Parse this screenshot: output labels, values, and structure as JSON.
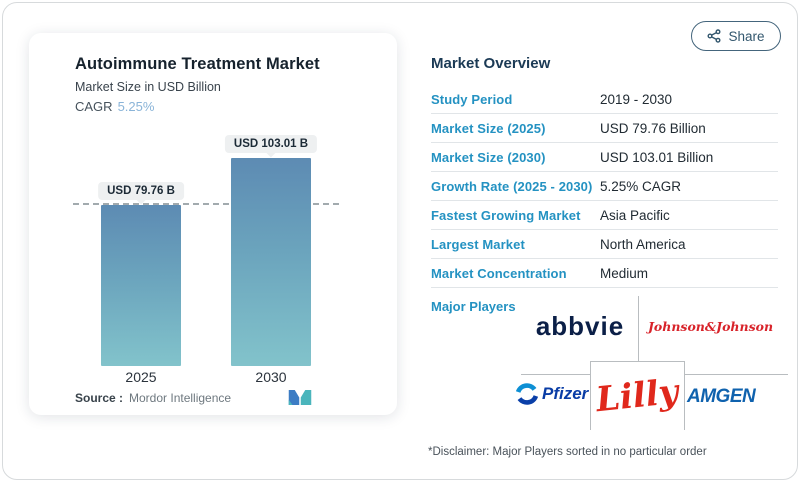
{
  "share": {
    "label": "Share"
  },
  "chart": {
    "title": "Autoimmune Treatment Market",
    "subtitle": "Market Size in USD Billion",
    "cagr_label": "CAGR",
    "cagr_value": "5.25%",
    "source_label": "Source :",
    "source_value": "Mordor Intelligence"
  },
  "chart_data": {
    "type": "bar",
    "title": "Autoimmune Treatment Market",
    "ylabel": "Market Size in USD Billion",
    "categories": [
      "2025",
      "2030"
    ],
    "values": [
      79.76,
      103.01
    ],
    "value_labels": [
      "USD 79.76 B",
      "USD 103.01 B"
    ],
    "cagr": "5.25%",
    "reference_line": 79.76,
    "ylim": [
      0,
      110
    ],
    "y_axis_visible": false,
    "grid": false,
    "bar_color_top": "#5d8bb3",
    "bar_color_bottom": "#82c3cb"
  },
  "overview": {
    "title": "Market Overview",
    "rows": [
      {
        "label": "Study Period",
        "value": "2019 - 2030"
      },
      {
        "label": "Market Size (2025)",
        "value": "USD 79.76 Billion"
      },
      {
        "label": "Market Size (2030)",
        "value": "USD 103.01 Billion"
      },
      {
        "label": "Growth Rate (2025 - 2030)",
        "value": "5.25% CAGR"
      },
      {
        "label": "Fastest Growing Market",
        "value": "Asia Pacific"
      },
      {
        "label": "Largest Market",
        "value": "North America"
      },
      {
        "label": "Market Concentration",
        "value": "Medium"
      }
    ],
    "major_players_label": "Major Players",
    "players": [
      {
        "name": "abbvie"
      },
      {
        "name": "Johnson&Johnson"
      },
      {
        "name": "Pfizer"
      },
      {
        "name": "Lilly"
      },
      {
        "name": "AMGEN"
      }
    ],
    "disclaimer": "*Disclaimer: Major Players sorted in no particular order"
  },
  "colors": {
    "accent_blue": "#2492c2",
    "heading_navy": "#1b3a55",
    "cagr_blue": "#8ab4d8",
    "share_navy": "#33576e",
    "abbvie_navy": "#0b1f47",
    "jnj_red": "#d8232a",
    "pfizer_blue": "#0a3da6",
    "lilly_red": "#e0281c",
    "amgen_blue": "#0f62ae",
    "mordor_blue": "#3c7cc4",
    "mordor_teal": "#4ab5bc"
  }
}
